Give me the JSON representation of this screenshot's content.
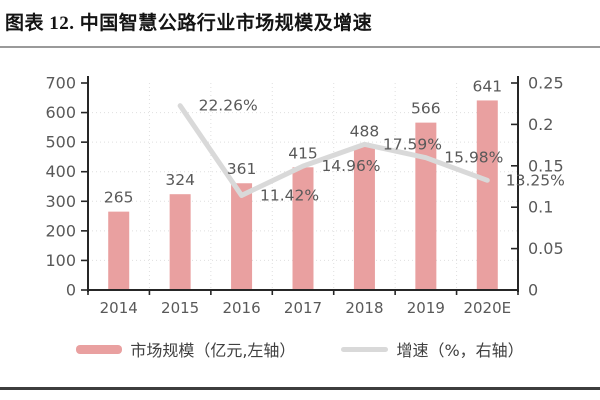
{
  "page": {
    "title": "图表 12. 中国智慧公路行业市场规模及增速"
  },
  "chart_data": {
    "type": "bar",
    "subtype": "combo-bar-line",
    "title": "中国智慧公路行业市场规模及增速",
    "categories": [
      "2014",
      "2015",
      "2016",
      "2017",
      "2018",
      "2019",
      "2020E"
    ],
    "series": [
      {
        "name": "市场规模（亿元,左轴）",
        "type": "bar",
        "axis": "left",
        "values": [
          265,
          324,
          361,
          415,
          488,
          566,
          641
        ],
        "labels": [
          "265",
          "324",
          "361",
          "415",
          "488",
          "566",
          "641"
        ],
        "color": "#E9A0A0"
      },
      {
        "name": "增速（%，右轴）",
        "type": "line",
        "axis": "right",
        "x": [
          "2015",
          "2016",
          "2017",
          "2018",
          "2019",
          "2020E"
        ],
        "values": [
          0.2226,
          0.1142,
          0.1496,
          0.1759,
          0.1598,
          0.1325
        ],
        "labels": [
          "22.26%",
          "11.42%",
          "14.96%",
          "17.59%",
          "15.98%",
          "13.25%"
        ],
        "color": "#D9D9D9"
      }
    ],
    "left_axis": {
      "min": 0,
      "max": 700,
      "tick_values": [
        0,
        100,
        200,
        300,
        400,
        500,
        600,
        700
      ],
      "tick_labels": [
        "0",
        "100",
        "200",
        "300",
        "400",
        "500",
        "600",
        "700"
      ]
    },
    "right_axis": {
      "min": 0,
      "max": 0.25,
      "tick_values": [
        0,
        0.05,
        0.1,
        0.15,
        0.2,
        0.25
      ],
      "tick_labels": [
        "0",
        "0.05",
        "0.1",
        "0.15",
        "0.2",
        "0.25"
      ]
    },
    "grid": true,
    "legend_position": "bottom"
  },
  "legend": {
    "items": [
      {
        "label": "市场规模（亿元,左轴）",
        "swatch": "bar",
        "color": "#E9A0A0"
      },
      {
        "label": "增速（%，右轴）",
        "swatch": "line",
        "color": "#D9D9D9"
      }
    ]
  },
  "colors": {
    "bar": "#E9A0A0",
    "line": "#D9D9D9",
    "text": "#595959",
    "axis": "#262626",
    "grid": "#DFDFDF",
    "title_rule": "#9A9A9A",
    "bottom_rule": "#3D3D3D"
  }
}
